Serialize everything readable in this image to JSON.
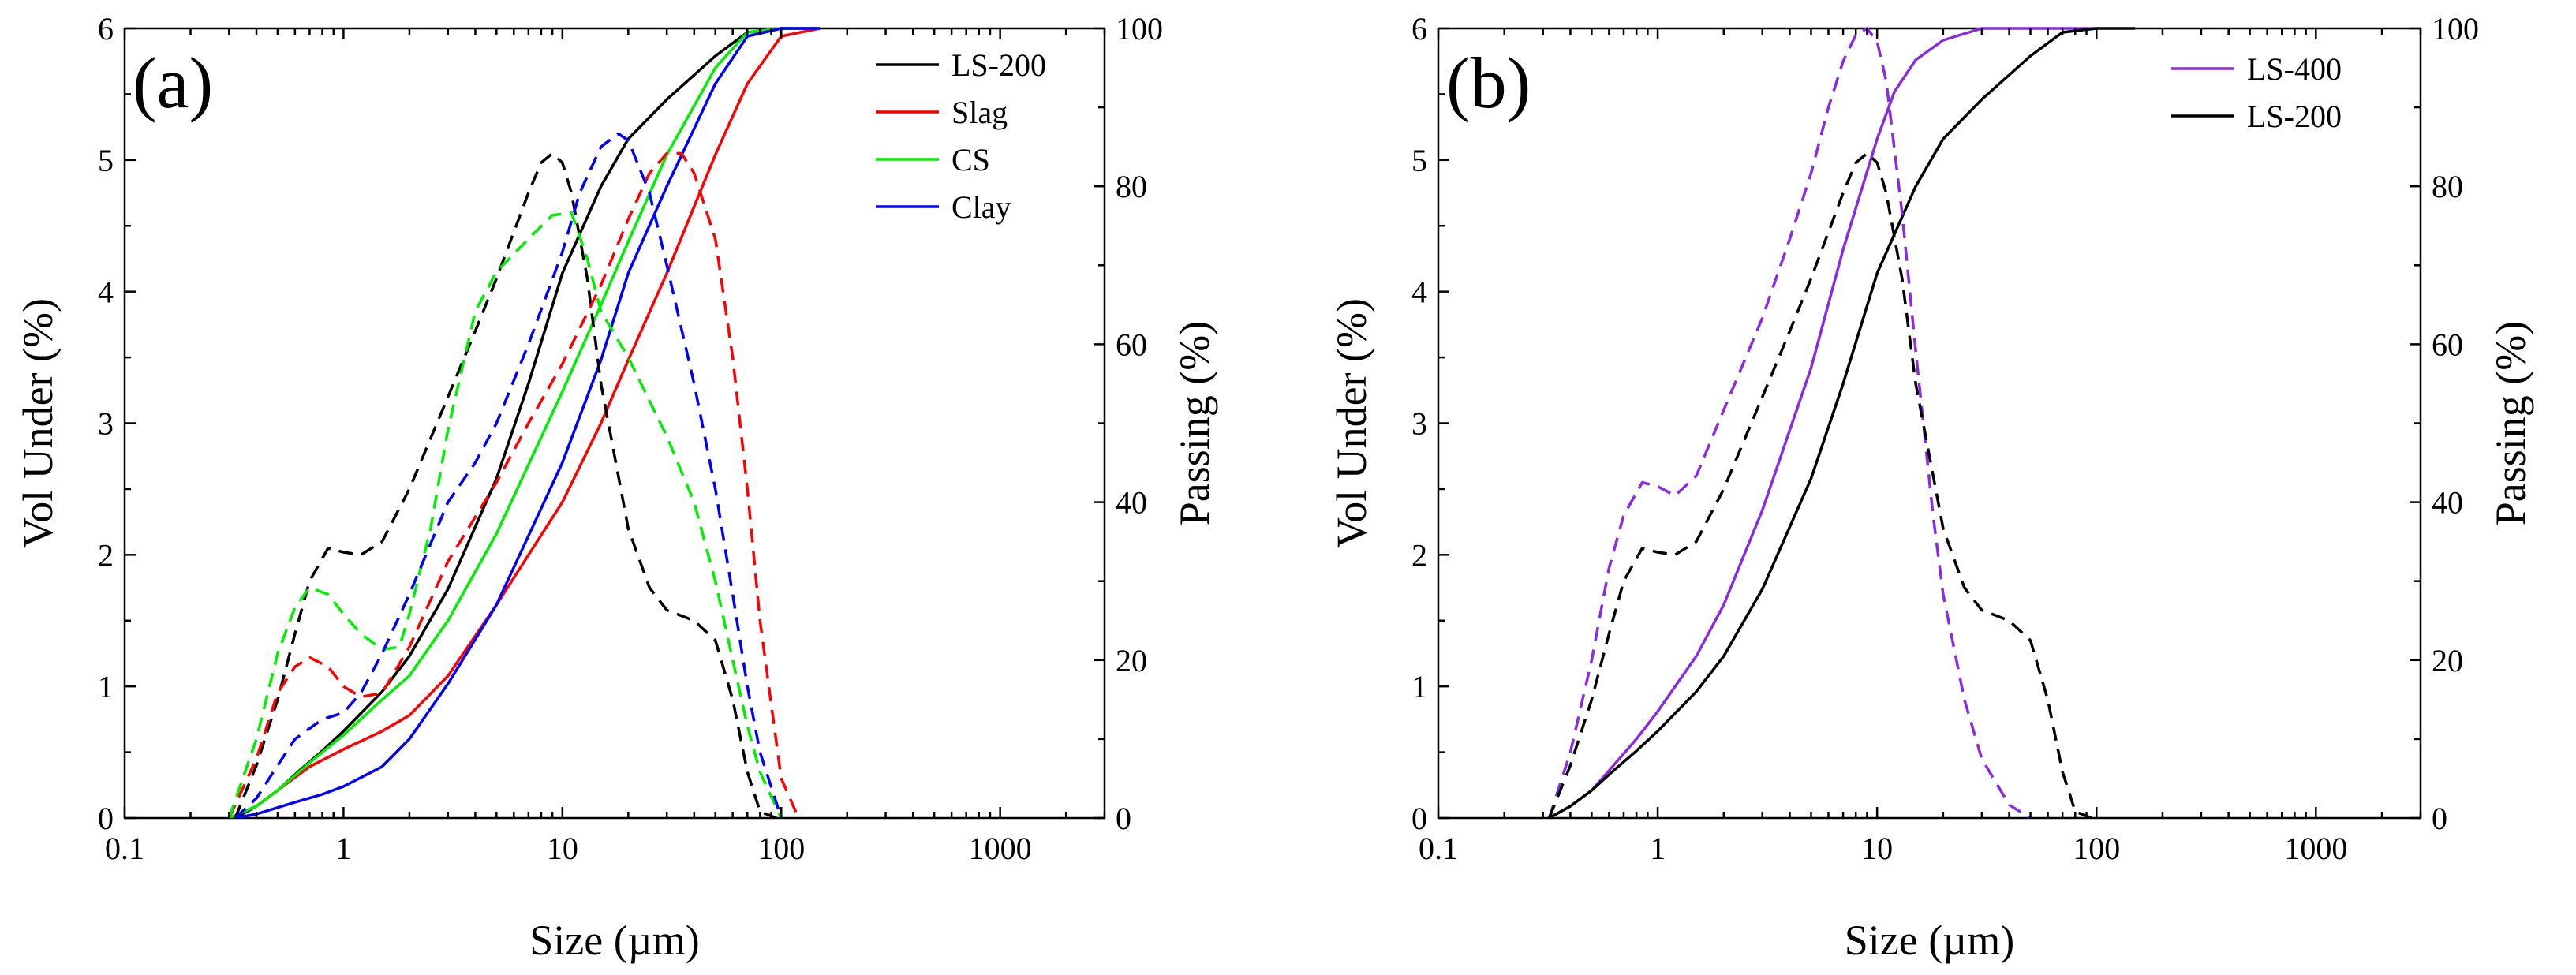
{
  "chart_data": [
    {
      "type": "line",
      "panel_label": "(a)",
      "xlabel": "Size (µm)",
      "ylabel": "Vol Under (%)",
      "y2label": "Passing (%)",
      "x_scale": "log",
      "xlim": [
        0.1,
        3000
      ],
      "ylim": [
        0,
        6
      ],
      "y2lim": [
        0,
        100
      ],
      "x_ticks": [
        0.1,
        1,
        10,
        100,
        1000
      ],
      "x_tick_labels": [
        "0.1",
        "1",
        "10",
        "100",
        "1000"
      ],
      "y_ticks": [
        0,
        1,
        2,
        3,
        4,
        5,
        6
      ],
      "y_tick_labels": [
        "0",
        "1",
        "2",
        "3",
        "4",
        "5",
        "6"
      ],
      "y2_ticks": [
        0,
        20,
        40,
        60,
        80,
        100
      ],
      "y2_tick_labels": [
        "0",
        "20",
        "40",
        "60",
        "80",
        "100"
      ],
      "grid": false,
      "legend_position": "top-right",
      "legend": [
        "LS-200",
        "Slag",
        "CS",
        "Clay"
      ],
      "series": [
        {
          "name": "LS-200",
          "color": "#000000",
          "style": "solid",
          "axis": "right",
          "x": [
            0.32,
            0.4,
            0.5,
            0.6,
            0.8,
            1,
            1.5,
            2,
            3,
            5,
            7,
            10,
            15,
            20,
            30,
            50,
            70,
            100,
            150
          ],
          "y": [
            0,
            1.5,
            3.5,
            5.5,
            8.5,
            11,
            16,
            20.5,
            29,
            43,
            55,
            69,
            80,
            86,
            91,
            96.5,
            99.5,
            100,
            100
          ]
        },
        {
          "name": "Slag",
          "color": "#ff0000",
          "style": "solid",
          "axis": "right",
          "x": [
            0.3,
            0.4,
            0.5,
            0.7,
            1,
            1.5,
            2,
            3,
            5,
            10,
            15,
            20,
            30,
            50,
            70,
            100,
            150
          ],
          "y": [
            0,
            1.5,
            3.5,
            6.5,
            8.7,
            11,
            13,
            18,
            27,
            40,
            50,
            58,
            69,
            84,
            93,
            99,
            100
          ]
        },
        {
          "name": "CS",
          "color": "#00ee00",
          "style": "solid",
          "axis": "right",
          "x": [
            0.3,
            0.4,
            0.5,
            0.7,
            1,
            1.5,
            2,
            3,
            5,
            10,
            15,
            20,
            30,
            50,
            70,
            100,
            150
          ],
          "y": [
            0,
            1.5,
            3.5,
            7,
            10.5,
            15,
            18,
            25,
            36,
            54,
            65,
            73,
            84,
            95,
            99.5,
            100,
            100
          ]
        },
        {
          "name": "Clay",
          "color": "#0000ff",
          "style": "solid",
          "axis": "right",
          "x": [
            0.32,
            0.4,
            0.6,
            0.8,
            1,
            1.5,
            2,
            3,
            5,
            10,
            15,
            20,
            30,
            50,
            70,
            100,
            150
          ],
          "y": [
            0,
            0.5,
            2,
            3,
            4,
            6.5,
            10,
            17,
            27,
            45,
            58,
            69,
            80,
            93,
            99,
            100,
            100
          ]
        },
        {
          "name": "LS-200",
          "color": "#000000",
          "style": "dashed",
          "axis": "left",
          "x": [
            0.32,
            0.4,
            0.5,
            0.6,
            0.7,
            0.85,
            1,
            1.2,
            1.5,
            2,
            3,
            4,
            5,
            7,
            8,
            9,
            10,
            11,
            13,
            15,
            20,
            25,
            30,
            40,
            50,
            60,
            70,
            80,
            95
          ],
          "y": [
            0,
            0.4,
            0.9,
            1.4,
            1.8,
            2.05,
            2.02,
            2.0,
            2.1,
            2.5,
            3.2,
            3.7,
            4.1,
            4.75,
            4.98,
            5.05,
            4.98,
            4.75,
            4.1,
            3.3,
            2.2,
            1.75,
            1.58,
            1.5,
            1.35,
            0.9,
            0.35,
            0.05,
            0
          ]
        },
        {
          "name": "Slag",
          "color": "#ff0000",
          "style": "dashed",
          "axis": "left",
          "x": [
            0.3,
            0.4,
            0.5,
            0.6,
            0.7,
            0.85,
            1,
            1.2,
            1.5,
            2,
            3,
            5,
            7,
            10,
            15,
            20,
            25,
            30,
            35,
            40,
            50,
            60,
            70,
            80,
            100,
            120
          ],
          "y": [
            0,
            0.45,
            0.95,
            1.15,
            1.22,
            1.15,
            1.0,
            0.92,
            0.95,
            1.3,
            1.95,
            2.55,
            3.0,
            3.45,
            4.05,
            4.55,
            4.9,
            5.05,
            5.05,
            4.9,
            4.4,
            3.5,
            2.5,
            1.5,
            0.3,
            0
          ]
        },
        {
          "name": "CS",
          "color": "#00ee00",
          "style": "dashed",
          "axis": "left",
          "x": [
            0.3,
            0.4,
            0.5,
            0.6,
            0.7,
            0.85,
            1,
            1.2,
            1.5,
            1.8,
            2,
            2.5,
            3,
            4,
            5,
            7,
            9,
            11,
            13,
            15,
            20,
            30,
            40,
            50,
            60,
            70,
            80,
            100
          ],
          "y": [
            0,
            0.6,
            1.25,
            1.6,
            1.75,
            1.7,
            1.55,
            1.4,
            1.28,
            1.3,
            1.55,
            2.2,
            2.95,
            3.85,
            4.15,
            4.4,
            4.58,
            4.6,
            4.25,
            3.85,
            3.5,
            2.9,
            2.4,
            1.8,
            1.2,
            0.7,
            0.35,
            0
          ]
        },
        {
          "name": "Clay",
          "color": "#0000ff",
          "style": "dashed",
          "axis": "left",
          "x": [
            0.32,
            0.4,
            0.5,
            0.6,
            0.8,
            1,
            1.2,
            1.5,
            2,
            3,
            4,
            5,
            7,
            10,
            12,
            15,
            18,
            20,
            25,
            30,
            40,
            50,
            60,
            70,
            80,
            100
          ],
          "y": [
            0,
            0.15,
            0.4,
            0.6,
            0.75,
            0.8,
            0.95,
            1.25,
            1.7,
            2.4,
            2.7,
            3.0,
            3.6,
            4.3,
            4.75,
            5.1,
            5.2,
            5.15,
            4.75,
            4.2,
            3.3,
            2.5,
            1.7,
            1.0,
            0.5,
            0
          ]
        }
      ]
    },
    {
      "type": "line",
      "panel_label": "(b)",
      "xlabel": "Size (µm)",
      "ylabel": "Vol Under (%)",
      "y2label": "Passing (%)",
      "x_scale": "log",
      "xlim": [
        0.1,
        3000
      ],
      "ylim": [
        0,
        6
      ],
      "y2lim": [
        0,
        100
      ],
      "x_ticks": [
        0.1,
        1,
        10,
        100,
        1000
      ],
      "x_tick_labels": [
        "0.1",
        "1",
        "10",
        "100",
        "1000"
      ],
      "y_ticks": [
        0,
        1,
        2,
        3,
        4,
        5,
        6
      ],
      "y_tick_labels": [
        "0",
        "1",
        "2",
        "3",
        "4",
        "5",
        "6"
      ],
      "y2_ticks": [
        0,
        20,
        40,
        60,
        80,
        100
      ],
      "y2_tick_labels": [
        "0",
        "20",
        "40",
        "60",
        "80",
        "100"
      ],
      "grid": false,
      "legend_position": "top-right",
      "legend": [
        "LS-400",
        "LS-200"
      ],
      "series": [
        {
          "name": "LS-400",
          "color": "#8a2be2",
          "style": "solid",
          "axis": "right",
          "x": [
            0.32,
            0.4,
            0.5,
            0.6,
            0.8,
            1,
            1.5,
            2,
            3,
            5,
            7,
            10,
            12,
            15,
            20,
            30,
            40,
            50,
            70,
            100
          ],
          "y": [
            0,
            1.5,
            3.5,
            6,
            10,
            13.5,
            20.5,
            27,
            39,
            57,
            72,
            86,
            92,
            96,
            98.5,
            100,
            100,
            100,
            100,
            100
          ]
        },
        {
          "name": "LS-200",
          "color": "#000000",
          "style": "solid",
          "axis": "right",
          "x": [
            0.32,
            0.4,
            0.5,
            0.6,
            0.8,
            1,
            1.5,
            2,
            3,
            5,
            7,
            10,
            15,
            20,
            30,
            50,
            70,
            100,
            150
          ],
          "y": [
            0,
            1.5,
            3.5,
            5.5,
            8.5,
            11,
            16,
            20.5,
            29,
            43,
            55,
            69,
            80,
            86,
            91,
            96.5,
            99.5,
            100,
            100
          ]
        },
        {
          "name": "LS-400",
          "color": "#8a2be2",
          "style": "dashed",
          "axis": "left",
          "x": [
            0.32,
            0.4,
            0.5,
            0.6,
            0.7,
            0.85,
            1,
            1.2,
            1.5,
            2,
            3,
            4,
            5,
            6,
            7,
            8,
            9,
            10,
            11,
            13,
            15,
            18,
            20,
            25,
            30,
            40,
            50
          ],
          "y": [
            0,
            0.5,
            1.2,
            1.9,
            2.3,
            2.55,
            2.52,
            2.45,
            2.6,
            3.1,
            3.8,
            4.4,
            4.9,
            5.4,
            5.75,
            5.95,
            6.0,
            5.9,
            5.6,
            4.6,
            3.55,
            2.3,
            1.7,
            0.9,
            0.45,
            0.1,
            0
          ]
        },
        {
          "name": "LS-200",
          "color": "#000000",
          "style": "dashed",
          "axis": "left",
          "x": [
            0.32,
            0.4,
            0.5,
            0.6,
            0.7,
            0.85,
            1,
            1.2,
            1.5,
            2,
            3,
            4,
            5,
            7,
            8,
            9,
            10,
            11,
            13,
            15,
            20,
            25,
            30,
            40,
            50,
            60,
            70,
            80,
            95
          ],
          "y": [
            0,
            0.4,
            0.9,
            1.4,
            1.8,
            2.05,
            2.02,
            2.0,
            2.1,
            2.5,
            3.2,
            3.7,
            4.1,
            4.75,
            4.98,
            5.05,
            4.98,
            4.75,
            4.1,
            3.3,
            2.2,
            1.75,
            1.58,
            1.5,
            1.35,
            0.9,
            0.35,
            0.05,
            0
          ]
        }
      ]
    }
  ]
}
